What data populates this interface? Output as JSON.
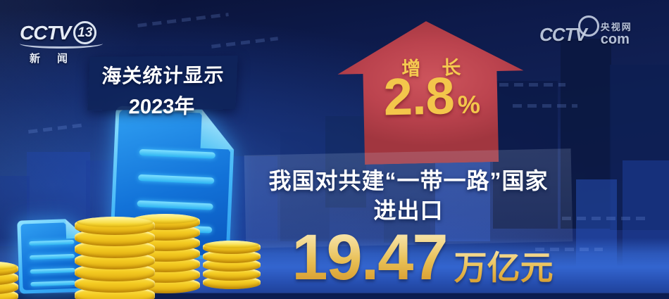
{
  "channel_logo": {
    "brand": "CCTV",
    "channel_number": "13",
    "channel_name": "新闻"
  },
  "site_watermark": {
    "brand": "CCTV",
    "site_name": "央视网",
    "site_domain": "com"
  },
  "source_badge": {
    "line1": "海关统计显示",
    "line2": "2023年"
  },
  "growth_arrow": {
    "label": "增长",
    "value": "2.8",
    "unit": "%"
  },
  "headline": {
    "line1": "我国对共建“一带一路”国家",
    "line2": "进出口"
  },
  "amount": {
    "value": "19.47",
    "unit": "万亿元"
  },
  "colors": {
    "arrow_red": "#b5414c",
    "growth_gold": "#f3c64b",
    "amount_gold": "#e8bf55",
    "doc_glow_cyan": "#4ac8ff",
    "coin_gold": "#f2ca1f",
    "background_navy": "#0e1c50",
    "floor_blue": "#2f5fc4"
  },
  "icons": [
    "up-arrow-icon",
    "document-icon-large",
    "document-icon-small",
    "coin-stack-icon"
  ]
}
